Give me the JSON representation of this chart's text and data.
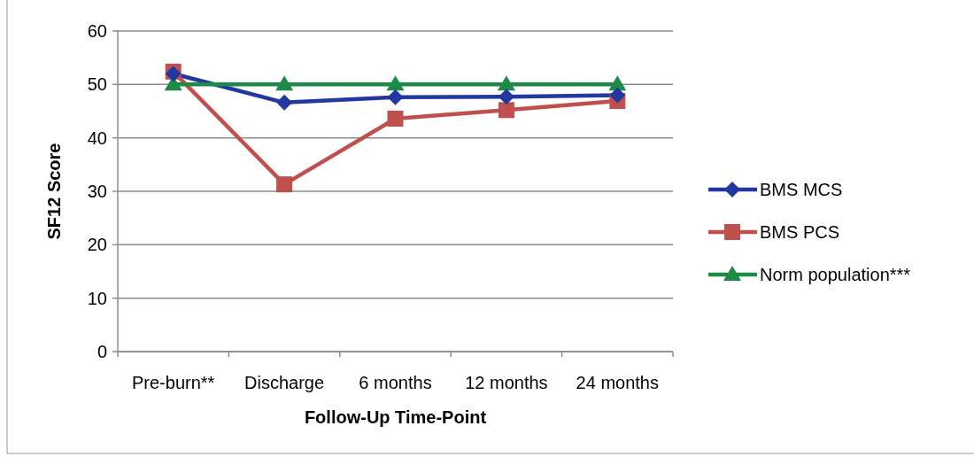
{
  "chart_data": {
    "type": "line",
    "xlabel": "Follow-Up Time-Point",
    "ylabel": "SF12 Score",
    "categories": [
      "Pre-burn**",
      "Discharge",
      "6 months",
      "12 months",
      "24 months"
    ],
    "series": [
      {
        "name": "BMS MCS",
        "color": "#2238a0",
        "marker": "diamond",
        "values": [
          52,
          46.6,
          47.6,
          47.7,
          48.0
        ]
      },
      {
        "name": "BMS PCS",
        "color": "#c0504d",
        "marker": "square",
        "values": [
          52.4,
          31.3,
          43.6,
          45.2,
          46.9
        ]
      },
      {
        "name": "Norm population***",
        "color": "#1e8a48",
        "marker": "triangle",
        "values": [
          50,
          50,
          50,
          50,
          50
        ]
      }
    ],
    "ylim": [
      0,
      60
    ],
    "yticks": [
      0,
      10,
      20,
      30,
      40,
      50,
      60
    ],
    "grid": "y",
    "legend": "right"
  }
}
